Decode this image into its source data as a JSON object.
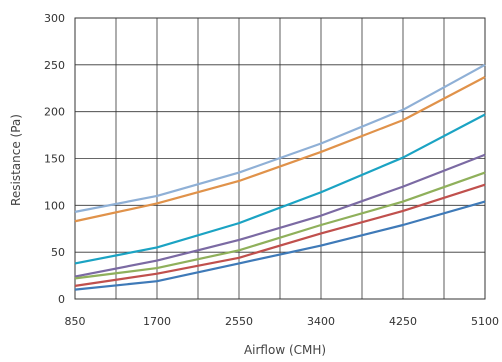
{
  "chart_data": {
    "type": "line",
    "title": "",
    "xlabel": "Airflow (CMH)",
    "ylabel": "Resistance (Pa)",
    "x": [
      850,
      1700,
      2550,
      3400,
      4250,
      5100
    ],
    "x_tick_labels": [
      "850",
      "1700",
      "2550",
      "3400",
      "4250",
      "5100"
    ],
    "y_tick_labels": [
      "0",
      "50",
      "100",
      "150",
      "200",
      "250",
      "300"
    ],
    "xlim": [
      850,
      5100
    ],
    "ylim": [
      0,
      300
    ],
    "grid": true,
    "x_grid_step": 425,
    "y_grid_step": 50,
    "series": [
      {
        "color": "#8fb0d6",
        "values": [
          93,
          110,
          135,
          166,
          202,
          250
        ]
      },
      {
        "color": "#e0924a",
        "values": [
          83,
          102,
          126,
          157,
          191,
          237
        ]
      },
      {
        "color": "#1ba3c3",
        "values": [
          38,
          55,
          81,
          114,
          151,
          197
        ]
      },
      {
        "color": "#7b6aa3",
        "values": [
          24,
          41,
          63,
          89,
          120,
          154
        ]
      },
      {
        "color": "#8fb05b",
        "values": [
          22,
          33,
          52,
          79,
          104,
          135
        ]
      },
      {
        "color": "#c0504d",
        "values": [
          14,
          27,
          44,
          70,
          94,
          122
        ]
      },
      {
        "color": "#3f7ab8",
        "values": [
          10,
          19,
          38,
          57,
          79,
          104
        ]
      }
    ]
  }
}
